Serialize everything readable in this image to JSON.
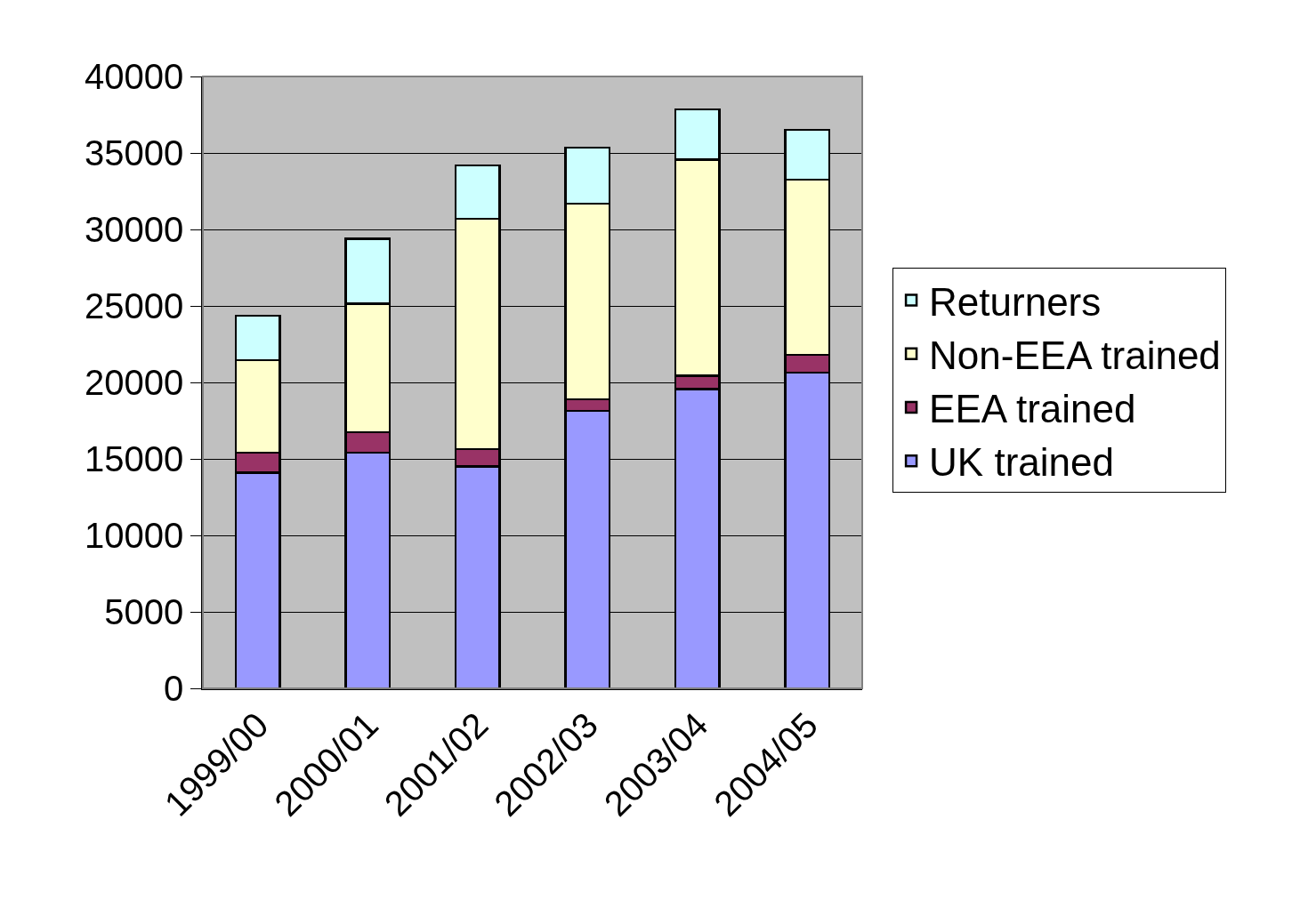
{
  "chart_data": {
    "type": "bar",
    "stacked": true,
    "categories": [
      "1999/00",
      "2000/01",
      "2001/02",
      "2002/03",
      "2003/04",
      "2004/05"
    ],
    "series": [
      {
        "name": "UK trained",
        "color": "#9999ff",
        "values": [
          14100,
          15400,
          14500,
          18150,
          19550,
          20650
        ]
      },
      {
        "name": "EEA trained",
        "color": "#993366",
        "values": [
          1300,
          1350,
          1150,
          750,
          900,
          1150
        ]
      },
      {
        "name": "Non-EEA trained",
        "color": "#ffffcc",
        "values": [
          6050,
          8400,
          15050,
          12800,
          14100,
          11450
        ]
      },
      {
        "name": "Returners",
        "color": "#ccffff",
        "values": [
          2900,
          4250,
          3500,
          3650,
          3300,
          3250
        ]
      }
    ],
    "ylim": [
      0,
      40000
    ],
    "yticks": [
      0,
      5000,
      10000,
      15000,
      20000,
      25000,
      30000,
      35000,
      40000
    ],
    "grid": "y",
    "legend": "right"
  }
}
